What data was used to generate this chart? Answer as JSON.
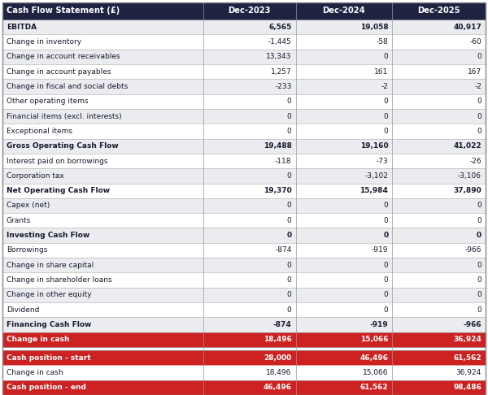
{
  "columns": [
    "Cash Flow Statement (£)",
    "Dec-2023",
    "Dec-2024",
    "Dec-2025"
  ],
  "rows": [
    {
      "label": "EBITDA",
      "values": [
        "6,565",
        "19,058",
        "40,917"
      ],
      "bold": true,
      "bg": "#eaecf0",
      "text_color": "#1a1a2e"
    },
    {
      "label": "Change in inventory",
      "values": [
        "-1,445",
        "-58",
        "-60"
      ],
      "bold": false,
      "bg": "#ffffff",
      "text_color": "#1a1a2e"
    },
    {
      "label": "Change in account receivables",
      "values": [
        "13,343",
        "0",
        "0"
      ],
      "bold": false,
      "bg": "#eaecf0",
      "text_color": "#1a1a2e"
    },
    {
      "label": "Change in account payables",
      "values": [
        "1,257",
        "161",
        "167"
      ],
      "bold": false,
      "bg": "#ffffff",
      "text_color": "#1a1a2e"
    },
    {
      "label": "Change in fiscal and social debts",
      "values": [
        "-233",
        "-2",
        "-2"
      ],
      "bold": false,
      "bg": "#eaecf0",
      "text_color": "#1a1a2e"
    },
    {
      "label": "Other operating items",
      "values": [
        "0",
        "0",
        "0"
      ],
      "bold": false,
      "bg": "#ffffff",
      "text_color": "#1a1a2e"
    },
    {
      "label": "Financial items (excl. interests)",
      "values": [
        "0",
        "0",
        "0"
      ],
      "bold": false,
      "bg": "#eaecf0",
      "text_color": "#1a1a2e"
    },
    {
      "label": "Exceptional items",
      "values": [
        "0",
        "0",
        "0"
      ],
      "bold": false,
      "bg": "#ffffff",
      "text_color": "#1a1a2e"
    },
    {
      "label": "Gross Operating Cash Flow",
      "values": [
        "19,488",
        "19,160",
        "41,022"
      ],
      "bold": true,
      "bg": "#eaecf0",
      "text_color": "#1a1a2e"
    },
    {
      "label": "Interest paid on borrowings",
      "values": [
        "-118",
        "-73",
        "-26"
      ],
      "bold": false,
      "bg": "#ffffff",
      "text_color": "#1a1a2e"
    },
    {
      "label": "Corporation tax",
      "values": [
        "0",
        "-3,102",
        "-3,106"
      ],
      "bold": false,
      "bg": "#eaecf0",
      "text_color": "#1a1a2e"
    },
    {
      "label": "Net Operating Cash Flow",
      "values": [
        "19,370",
        "15,984",
        "37,890"
      ],
      "bold": true,
      "bg": "#ffffff",
      "text_color": "#1a1a2e"
    },
    {
      "label": "Capex (net)",
      "values": [
        "0",
        "0",
        "0"
      ],
      "bold": false,
      "bg": "#eaecf0",
      "text_color": "#1a1a2e"
    },
    {
      "label": "Grants",
      "values": [
        "0",
        "0",
        "0"
      ],
      "bold": false,
      "bg": "#ffffff",
      "text_color": "#1a1a2e"
    },
    {
      "label": "Investing Cash Flow",
      "values": [
        "0",
        "0",
        "0"
      ],
      "bold": true,
      "bg": "#eaecf0",
      "text_color": "#1a1a2e"
    },
    {
      "label": "Borrowings",
      "values": [
        "-874",
        "-919",
        "-966"
      ],
      "bold": false,
      "bg": "#ffffff",
      "text_color": "#1a1a2e"
    },
    {
      "label": "Change in share capital",
      "values": [
        "0",
        "0",
        "0"
      ],
      "bold": false,
      "bg": "#eaecf0",
      "text_color": "#1a1a2e"
    },
    {
      "label": "Change in shareholder loans",
      "values": [
        "0",
        "0",
        "0"
      ],
      "bold": false,
      "bg": "#ffffff",
      "text_color": "#1a1a2e"
    },
    {
      "label": "Change in other equity",
      "values": [
        "0",
        "0",
        "0"
      ],
      "bold": false,
      "bg": "#eaecf0",
      "text_color": "#1a1a2e"
    },
    {
      "label": "Dividend",
      "values": [
        "0",
        "0",
        "0"
      ],
      "bold": false,
      "bg": "#ffffff",
      "text_color": "#1a1a2e"
    },
    {
      "label": "Financing Cash Flow",
      "values": [
        "-874",
        "-919",
        "-966"
      ],
      "bold": true,
      "bg": "#eaecf0",
      "text_color": "#1a1a2e"
    },
    {
      "label": "Change in cash",
      "values": [
        "18,496",
        "15,066",
        "36,924"
      ],
      "bold": true,
      "bg": "#cc2222",
      "text_color": "#ffffff",
      "sep_before": false
    },
    {
      "label": "Cash position - start",
      "values": [
        "28,000",
        "46,496",
        "61,562"
      ],
      "bold": true,
      "bg": "#cc2222",
      "text_color": "#ffffff",
      "sep_before": true
    },
    {
      "label": "Change in cash",
      "values": [
        "18,496",
        "15,066",
        "36,924"
      ],
      "bold": false,
      "bg": "#ffffff",
      "text_color": "#1a1a2e",
      "sep_before": false
    },
    {
      "label": "Cash position - end",
      "values": [
        "46,496",
        "61,562",
        "98,486"
      ],
      "bold": true,
      "bg": "#cc2222",
      "text_color": "#ffffff",
      "sep_before": false
    }
  ],
  "header_bg": "#1e2342",
  "header_text": "#ffffff",
  "fig_w": 6.0,
  "fig_h": 4.86,
  "dpi": 100
}
